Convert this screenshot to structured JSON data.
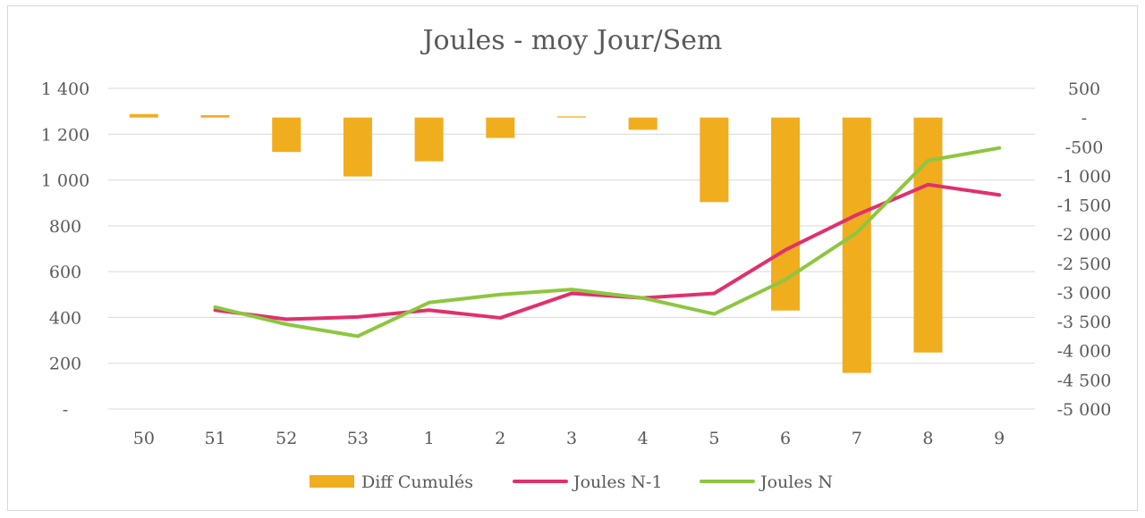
{
  "chart_data": {
    "type": "bar",
    "title": "Joules - moy Jour/Sem",
    "categories": [
      "50",
      "51",
      "52",
      "53",
      "1",
      "2",
      "3",
      "4",
      "5",
      "6",
      "7",
      "8",
      "9"
    ],
    "y_left": {
      "ylim": [
        0,
        1400
      ],
      "ticks": [
        0,
        200,
        400,
        600,
        800,
        1000,
        1200,
        1400
      ],
      "tick_labels": [
        "-",
        "200",
        "400",
        "600",
        "800",
        "1 000",
        "1 200",
        "1 400"
      ]
    },
    "y_right": {
      "ylim": [
        -5000,
        500
      ],
      "ticks": [
        500,
        0,
        -500,
        -1000,
        -1500,
        -2000,
        -2500,
        -3000,
        -3500,
        -4000,
        -4500,
        -5000
      ],
      "tick_labels": [
        "500",
        "-",
        "-500",
        "-1 000",
        "-1 500",
        "-2 000",
        "-2 500",
        "-3 000",
        "-3 500",
        "-4 000",
        "-4 500",
        "-5 000"
      ]
    },
    "grid": true,
    "legend_position": "bottom",
    "series": [
      {
        "name": "Diff Cumulés",
        "type": "bar",
        "axis": "right",
        "color": "#F0AD1E",
        "values": [
          60,
          40,
          -590,
          -1010,
          -750,
          -350,
          20,
          -210,
          -1450,
          -3310,
          -4380,
          -4030,
          null
        ]
      },
      {
        "name": "Joules N-1",
        "type": "line",
        "axis": "left",
        "color": "#E0306E",
        "values": [
          null,
          432,
          392,
          402,
          432,
          398,
          505,
          485,
          505,
          695,
          848,
          980,
          935
        ]
      },
      {
        "name": "Joules N",
        "type": "line",
        "axis": "left",
        "color": "#8DC63F",
        "values": [
          null,
          445,
          370,
          318,
          465,
          500,
          522,
          485,
          415,
          565,
          770,
          1085,
          1140
        ]
      }
    ]
  }
}
